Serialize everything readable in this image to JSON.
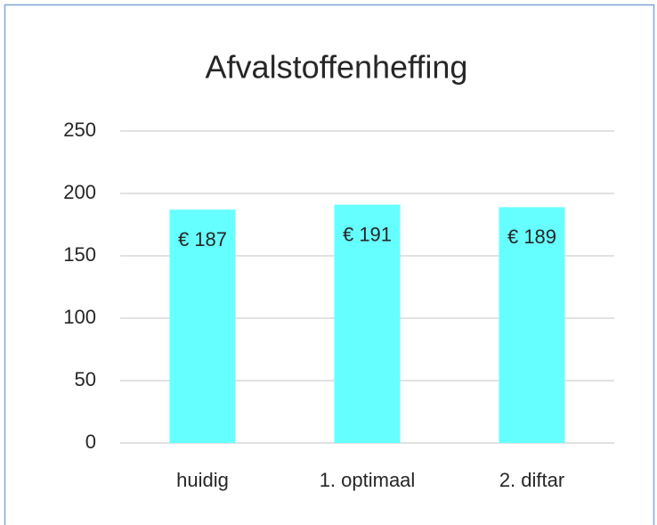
{
  "chart_data": {
    "type": "bar",
    "title": "Afvalstoffenheffing",
    "categories": [
      "huidig",
      "1. optimaal",
      "2. diftar"
    ],
    "values": [
      187,
      191,
      189
    ],
    "value_labels": [
      "€ 187",
      "€ 191",
      "€ 189"
    ],
    "color": "#66ffff",
    "ylim": [
      0,
      250
    ],
    "yticks": [
      0,
      50,
      100,
      150,
      200,
      250
    ],
    "grid": true
  }
}
